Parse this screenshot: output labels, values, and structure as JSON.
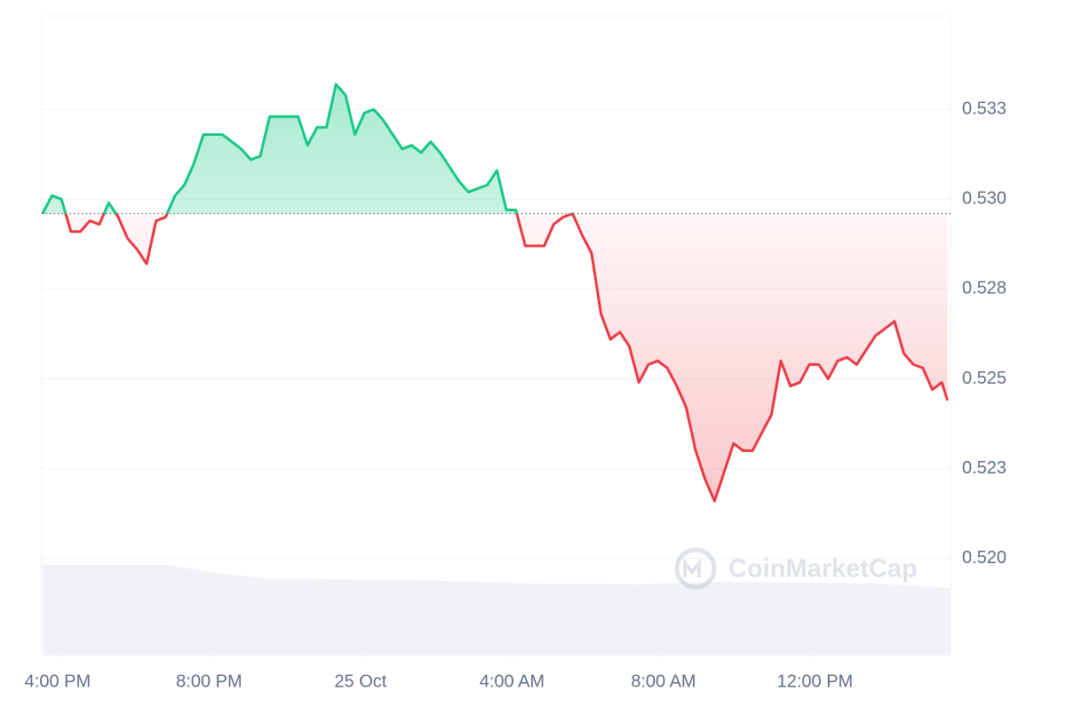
{
  "chart_data": {
    "type": "line",
    "watermark": "CoinMarketCap",
    "x": [
      -0.4,
      -0.15,
      0.1,
      0.35,
      0.6,
      0.85,
      1.1,
      1.35,
      1.6,
      1.85,
      2.1,
      2.35,
      2.6,
      2.85,
      3.1,
      3.35,
      3.6,
      3.85,
      4.1,
      4.35,
      4.6,
      4.85,
      5.1,
      5.35,
      5.6,
      5.85,
      6.1,
      6.35,
      6.6,
      6.85,
      7.1,
      7.35,
      7.6,
      7.85,
      8.1,
      8.35,
      8.6,
      8.85,
      9.1,
      9.35,
      9.6,
      9.85,
      10.1,
      10.35,
      10.6,
      10.85,
      11.1,
      11.35,
      11.6,
      11.85,
      12.1,
      12.35,
      12.6,
      12.85,
      13.1,
      13.35,
      13.6,
      13.85,
      14.1,
      14.35,
      14.6,
      14.85,
      15.1,
      15.35,
      15.6,
      15.85,
      16.1,
      16.35,
      16.6,
      16.85,
      17.1,
      17.35,
      17.6,
      17.85,
      18.1,
      18.35,
      18.6,
      18.85,
      19.1,
      19.35,
      19.6,
      19.85,
      20.1,
      20.35,
      20.6,
      20.85,
      21.1,
      21.35,
      21.6,
      21.85,
      22.1,
      22.35,
      22.6,
      22.85,
      23.1,
      23.35,
      23.5
    ],
    "values": [
      0.5296,
      0.5301,
      0.53,
      0.5291,
      0.5291,
      0.5294,
      0.5293,
      0.5299,
      0.5295,
      0.5289,
      0.5286,
      0.5282,
      0.5294,
      0.5295,
      0.5301,
      0.5304,
      0.531,
      0.5318,
      0.5318,
      0.5318,
      0.5316,
      0.5314,
      0.5311,
      0.5312,
      0.5323,
      0.5323,
      0.5323,
      0.5323,
      0.5315,
      0.532,
      0.532,
      0.5332,
      0.5329,
      0.5318,
      0.5324,
      0.5325,
      0.5322,
      0.5318,
      0.5314,
      0.5315,
      0.5313,
      0.5316,
      0.5313,
      0.5309,
      0.5305,
      0.5302,
      0.5303,
      0.5304,
      0.5308,
      0.5297,
      0.5297,
      0.5287,
      0.5287,
      0.5287,
      0.5293,
      0.5295,
      0.5296,
      0.529,
      0.5285,
      0.5268,
      0.5261,
      0.5263,
      0.5259,
      0.5249,
      0.5254,
      0.5255,
      0.5253,
      0.5248,
      0.5242,
      0.523,
      0.5222,
      0.5216,
      0.5224,
      0.5232,
      0.523,
      0.523,
      0.5235,
      0.524,
      0.5255,
      0.5248,
      0.5249,
      0.5254,
      0.5254,
      0.525,
      0.5255,
      0.5256,
      0.5254,
      0.5258,
      0.5262,
      0.5264,
      0.5266,
      0.5257,
      0.5254,
      0.5253,
      0.5247,
      0.5249,
      0.5244
    ],
    "baseline": 0.5296,
    "up_color": "#16c784",
    "down_color": "#ea3943",
    "xlim": [
      -0.42,
      23.58
    ],
    "xticks": [
      {
        "value": 0,
        "label": "4:00 PM"
      },
      {
        "value": 4,
        "label": "8:00 PM"
      },
      {
        "value": 8,
        "label": "25 Oct"
      },
      {
        "value": 12,
        "label": "4:00 AM"
      },
      {
        "value": 16,
        "label": "8:00 AM"
      },
      {
        "value": 20,
        "label": "12:00 PM"
      }
    ],
    "ylim": [
      0.5173,
      0.5351
    ],
    "yticks": [
      {
        "value": 0.52,
        "label": "0.520"
      },
      {
        "value": 0.5225,
        "label": "0.523"
      },
      {
        "value": 0.525,
        "label": "0.525"
      },
      {
        "value": 0.5275,
        "label": "0.528"
      },
      {
        "value": 0.53,
        "label": "0.530"
      },
      {
        "value": 0.5325,
        "label": "0.533"
      }
    ],
    "grid": true
  }
}
